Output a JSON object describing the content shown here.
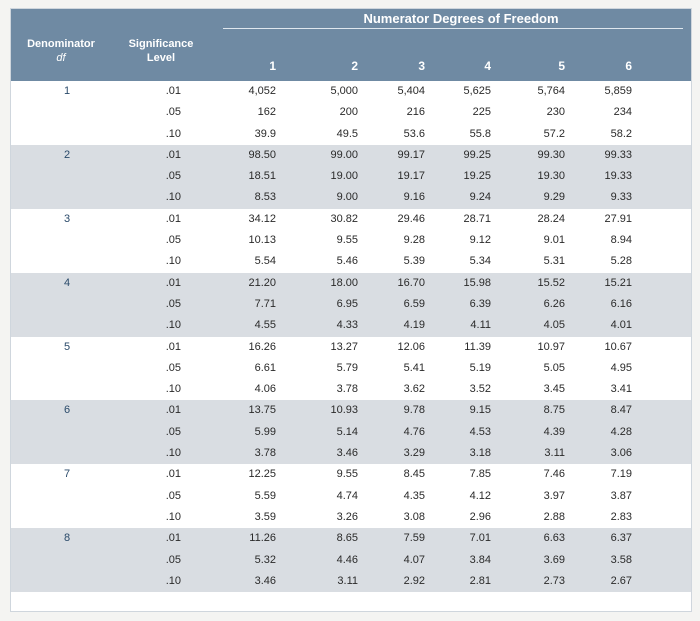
{
  "header": {
    "title": "Numerator Degrees of Freedom",
    "denominator_label": "Denominator",
    "denominator_sub": "df",
    "significance_label": "Significance",
    "significance_sub": "Level",
    "numerator_columns": [
      "1",
      "2",
      "3",
      "4",
      "5",
      "6"
    ]
  },
  "table": {
    "groups": [
      {
        "df": "1",
        "rows": [
          {
            "level": ".01",
            "values": [
              "4,052",
              "5,000",
              "5,404",
              "5,625",
              "5,764",
              "5,859"
            ]
          },
          {
            "level": ".05",
            "values": [
              "162",
              "200",
              "216",
              "225",
              "230",
              "234"
            ]
          },
          {
            "level": ".10",
            "values": [
              "39.9",
              "49.5",
              "53.6",
              "55.8",
              "57.2",
              "58.2"
            ]
          }
        ]
      },
      {
        "df": "2",
        "rows": [
          {
            "level": ".01",
            "values": [
              "98.50",
              "99.00",
              "99.17",
              "99.25",
              "99.30",
              "99.33"
            ]
          },
          {
            "level": ".05",
            "values": [
              "18.51",
              "19.00",
              "19.17",
              "19.25",
              "19.30",
              "19.33"
            ]
          },
          {
            "level": ".10",
            "values": [
              "8.53",
              "9.00",
              "9.16",
              "9.24",
              "9.29",
              "9.33"
            ]
          }
        ]
      },
      {
        "df": "3",
        "rows": [
          {
            "level": ".01",
            "values": [
              "34.12",
              "30.82",
              "29.46",
              "28.71",
              "28.24",
              "27.91"
            ]
          },
          {
            "level": ".05",
            "values": [
              "10.13",
              "9.55",
              "9.28",
              "9.12",
              "9.01",
              "8.94"
            ]
          },
          {
            "level": ".10",
            "values": [
              "5.54",
              "5.46",
              "5.39",
              "5.34",
              "5.31",
              "5.28"
            ]
          }
        ]
      },
      {
        "df": "4",
        "rows": [
          {
            "level": ".01",
            "values": [
              "21.20",
              "18.00",
              "16.70",
              "15.98",
              "15.52",
              "15.21"
            ]
          },
          {
            "level": ".05",
            "values": [
              "7.71",
              "6.95",
              "6.59",
              "6.39",
              "6.26",
              "6.16"
            ]
          },
          {
            "level": ".10",
            "values": [
              "4.55",
              "4.33",
              "4.19",
              "4.11",
              "4.05",
              "4.01"
            ]
          }
        ]
      },
      {
        "df": "5",
        "rows": [
          {
            "level": ".01",
            "values": [
              "16.26",
              "13.27",
              "12.06",
              "11.39",
              "10.97",
              "10.67"
            ]
          },
          {
            "level": ".05",
            "values": [
              "6.61",
              "5.79",
              "5.41",
              "5.19",
              "5.05",
              "4.95"
            ]
          },
          {
            "level": ".10",
            "values": [
              "4.06",
              "3.78",
              "3.62",
              "3.52",
              "3.45",
              "3.41"
            ]
          }
        ]
      },
      {
        "df": "6",
        "rows": [
          {
            "level": ".01",
            "values": [
              "13.75",
              "10.93",
              "9.78",
              "9.15",
              "8.75",
              "8.47"
            ]
          },
          {
            "level": ".05",
            "values": [
              "5.99",
              "5.14",
              "4.76",
              "4.53",
              "4.39",
              "4.28"
            ]
          },
          {
            "level": ".10",
            "values": [
              "3.78",
              "3.46",
              "3.29",
              "3.18",
              "3.11",
              "3.06"
            ]
          }
        ]
      },
      {
        "df": "7",
        "rows": [
          {
            "level": ".01",
            "values": [
              "12.25",
              "9.55",
              "8.45",
              "7.85",
              "7.46",
              "7.19"
            ]
          },
          {
            "level": ".05",
            "values": [
              "5.59",
              "4.74",
              "4.35",
              "4.12",
              "3.97",
              "3.87"
            ]
          },
          {
            "level": ".10",
            "values": [
              "3.59",
              "3.26",
              "3.08",
              "2.96",
              "2.88",
              "2.83"
            ]
          }
        ]
      },
      {
        "df": "8",
        "rows": [
          {
            "level": ".01",
            "values": [
              "11.26",
              "8.65",
              "7.59",
              "7.01",
              "6.63",
              "6.37"
            ]
          },
          {
            "level": ".05",
            "values": [
              "5.32",
              "4.46",
              "4.07",
              "3.84",
              "3.69",
              "3.58"
            ]
          },
          {
            "level": ".10",
            "values": [
              "3.46",
              "3.11",
              "2.92",
              "2.81",
              "2.73",
              "2.67"
            ]
          }
        ]
      }
    ]
  }
}
